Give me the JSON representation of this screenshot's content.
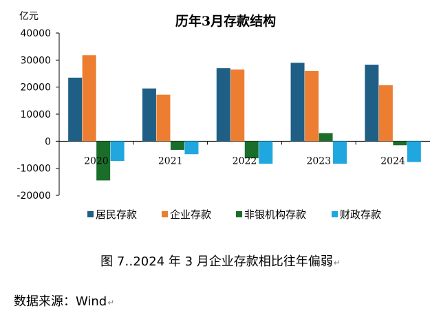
{
  "chart_data": {
    "type": "bar",
    "title": "历年3月存款结构",
    "unit_label": "亿元",
    "categories": [
      "2020",
      "2021",
      "2022",
      "2023",
      "2024"
    ],
    "series": [
      {
        "name": "居民存款",
        "color": "#1f5f86",
        "values": [
          23500,
          19500,
          27000,
          29000,
          28300
        ]
      },
      {
        "name": "企业存款",
        "color": "#ed7d31",
        "values": [
          31800,
          17200,
          26500,
          26000,
          20700
        ]
      },
      {
        "name": "非银机构存款",
        "color": "#1a6e2a",
        "values": [
          -14500,
          -3200,
          -6300,
          3000,
          -1500
        ]
      },
      {
        "name": "财政存款",
        "color": "#21a7e0",
        "values": [
          -7300,
          -4800,
          -8300,
          -8300,
          -7700
        ]
      }
    ],
    "ylim": [
      -20000,
      40000
    ],
    "yticks": [
      40000,
      30000,
      20000,
      10000,
      0,
      -10000,
      -20000
    ],
    "ytick_labels": [
      "40000",
      "30000",
      "20000",
      "10000",
      "0",
      "-10000",
      "-20000"
    ],
    "grid": false,
    "legend_position": "bottom"
  },
  "caption": "图 7‥2024 年 3 月企业存款相比往年偏弱",
  "caption_mark": "↵",
  "source": "数据来源：Wind",
  "source_mark": "↵"
}
